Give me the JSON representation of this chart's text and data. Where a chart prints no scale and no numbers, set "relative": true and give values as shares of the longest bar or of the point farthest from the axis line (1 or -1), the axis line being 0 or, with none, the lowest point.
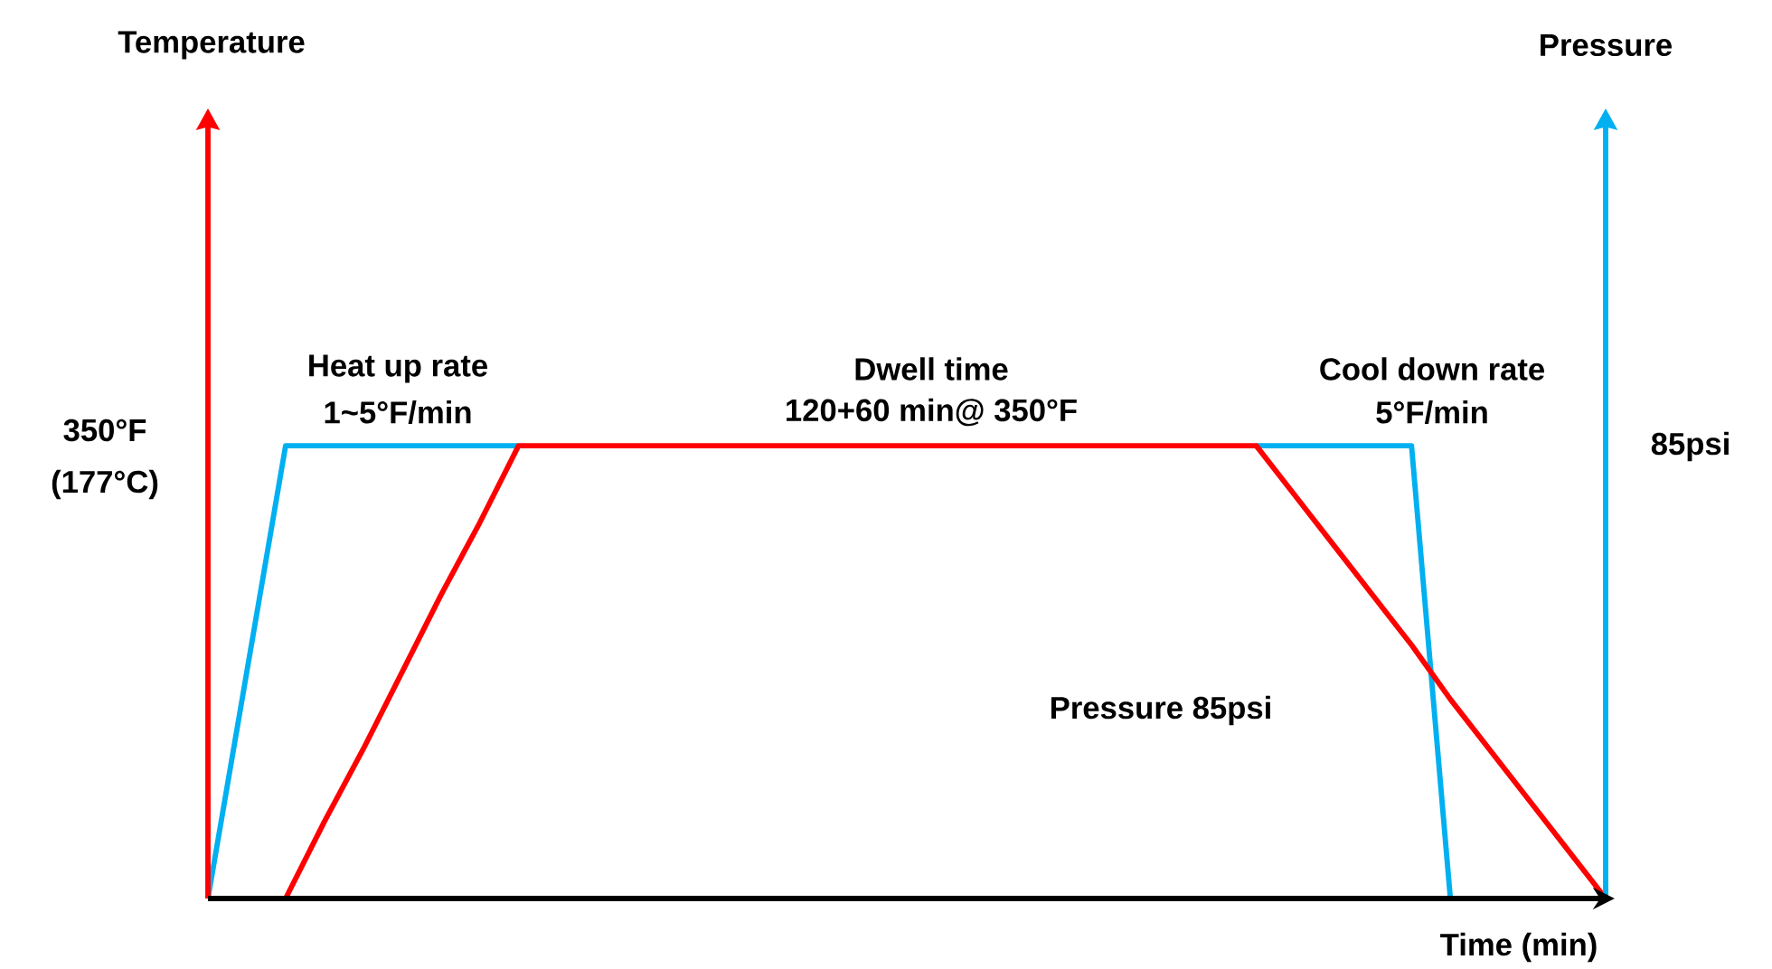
{
  "chart_data": {
    "type": "line",
    "relative": true,
    "xlabel": "Time (min)",
    "categories": [
      null,
      null,
      null,
      null,
      null,
      null,
      null,
      null,
      null,
      null,
      null,
      null,
      null,
      null,
      null,
      null,
      null,
      null,
      null,
      null,
      null,
      null,
      null,
      null,
      null,
      null,
      null,
      null,
      null,
      null,
      null,
      null,
      null,
      null,
      null,
      null,
      null
    ],
    "series": [
      {
        "color": "#00b0f0",
        "values": [
          0,
          0.5,
          1,
          1,
          1,
          1,
          1,
          1,
          1,
          null,
          null,
          null,
          null,
          null,
          null,
          null,
          null,
          null,
          null,
          null,
          null,
          null,
          null,
          null,
          null,
          null,
          null,
          1,
          1,
          1,
          1,
          1,
          0,
          null,
          null,
          null,
          null
        ]
      },
      {
        "color": "#ff0000",
        "values": [
          null,
          null,
          0,
          0.17,
          0.33,
          0.5,
          0.67,
          0.83,
          1,
          1,
          1,
          1,
          1,
          1,
          1,
          1,
          1,
          1,
          1,
          1,
          1,
          1,
          1,
          1,
          1,
          1,
          1,
          1,
          0.89,
          0.78,
          0.67,
          0.56,
          0.44,
          0.33,
          0.22,
          0.11,
          0
        ]
      }
    ],
    "annotations": [
      "Temperature",
      "Pressure",
      "350°F",
      "(177°C)",
      "85psi",
      "Heat up rate",
      "1~5°F/min",
      "Dwell time",
      "120+60 min@ 350°F",
      "Cool down rate",
      "5°F/min",
      "Pressure 85psi"
    ]
  }
}
